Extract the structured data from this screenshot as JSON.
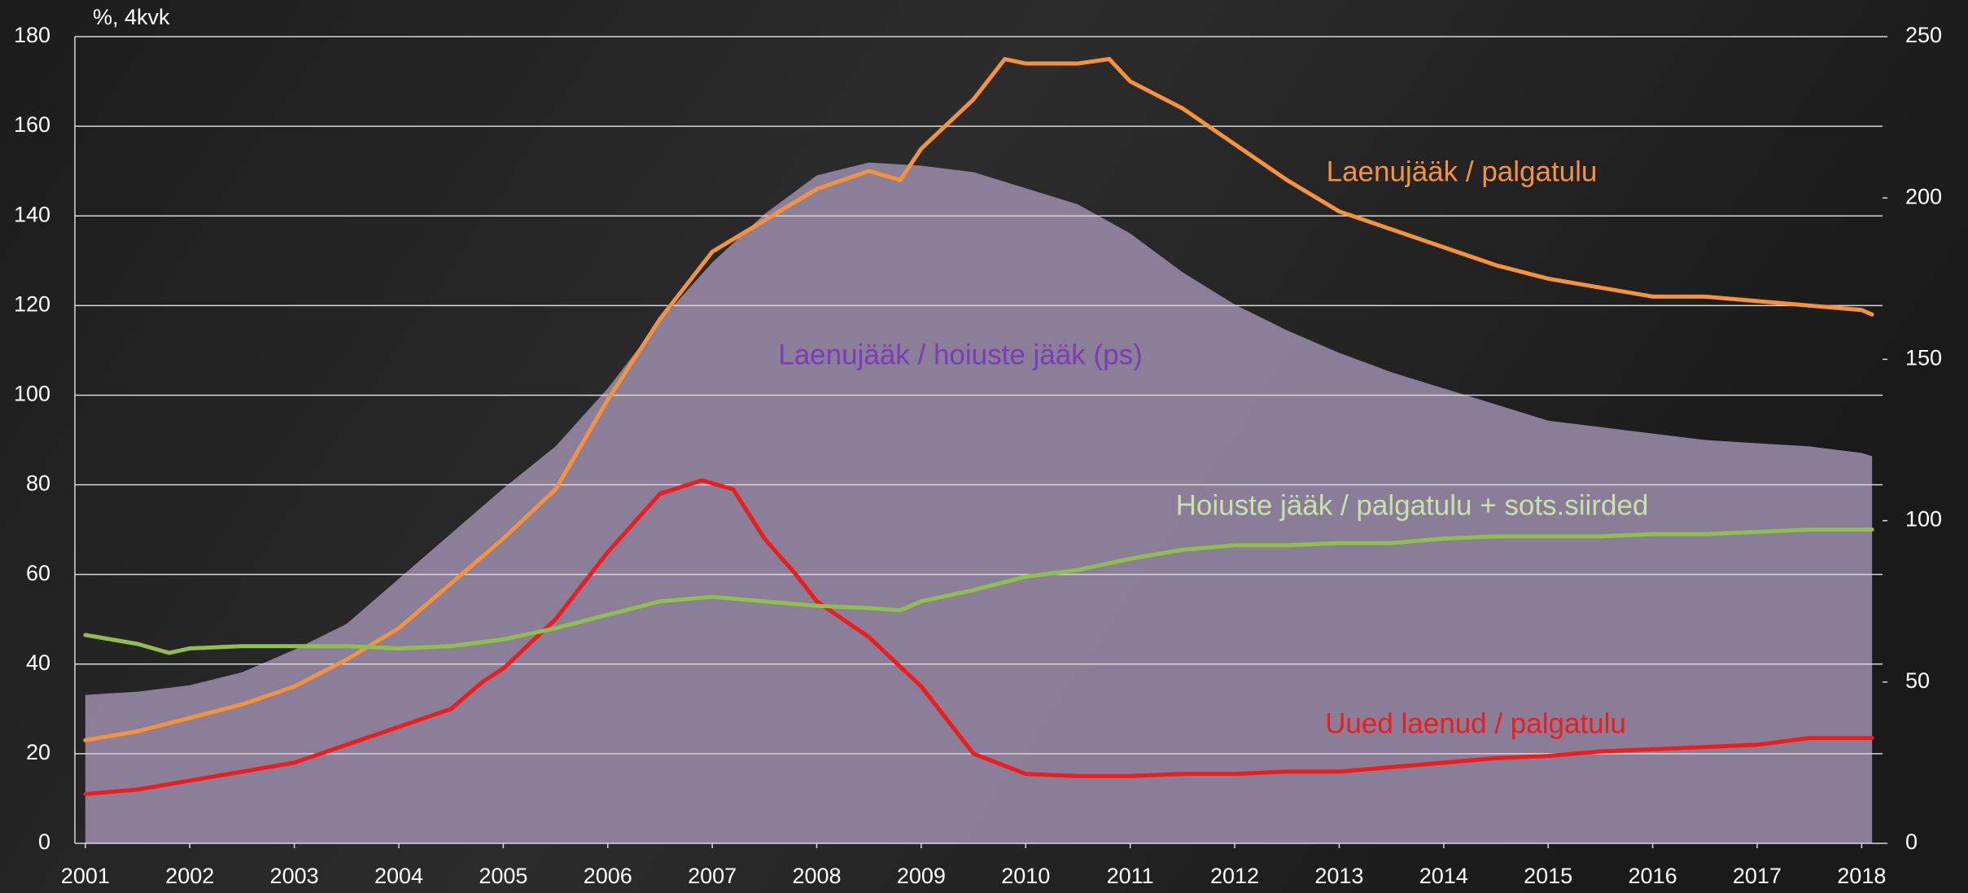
{
  "chart_data": {
    "type": "line",
    "ylabel": "%, 4kvk",
    "xlim": [
      2000.9,
      2018.2
    ],
    "xticks": [
      2001,
      2002,
      2003,
      2004,
      2005,
      2006,
      2007,
      2008,
      2009,
      2010,
      2011,
      2012,
      2013,
      2014,
      2015,
      2016,
      2017,
      2018
    ],
    "ylim": [
      0,
      180
    ],
    "yticks": [
      0,
      20,
      40,
      60,
      80,
      100,
      120,
      140,
      160,
      180
    ],
    "y2lim": [
      0,
      250
    ],
    "y2ticks": [
      0,
      50,
      100,
      150,
      200,
      250
    ],
    "grid": true,
    "series": [
      {
        "name": "Laenujääk / hoiuste jääk (ps)",
        "type": "area",
        "axis": "y2",
        "color": "#9385a3",
        "x": [
          2001,
          2001.5,
          2002,
          2002.5,
          2003,
          2003.5,
          2004,
          2004.5,
          2005,
          2005.5,
          2006,
          2006.5,
          2007,
          2007.5,
          2008,
          2008.5,
          2009,
          2009.5,
          2010,
          2010.5,
          2011,
          2011.5,
          2012,
          2012.5,
          2013,
          2013.5,
          2014,
          2014.5,
          2015,
          2015.5,
          2016,
          2016.5,
          2017,
          2017.5,
          2018,
          2018.1
        ],
        "values": [
          46,
          47,
          49,
          53,
          60,
          68,
          82,
          96,
          110,
          123,
          141,
          162,
          180,
          195,
          207,
          211,
          210,
          208,
          203,
          198,
          189,
          177,
          167,
          159,
          152,
          146,
          141,
          136,
          131,
          129,
          127,
          125,
          124,
          123,
          121,
          120
        ]
      },
      {
        "name": "Laenujääk / palgatulu",
        "type": "line",
        "color": "#f5923e",
        "x": [
          2001,
          2001.5,
          2002,
          2002.5,
          2003,
          2003.5,
          2004,
          2004.5,
          2005,
          2005.5,
          2006,
          2006.5,
          2007,
          2007.5,
          2008,
          2008.5,
          2008.8,
          2009,
          2009.5,
          2009.8,
          2010,
          2010.5,
          2010.8,
          2011,
          2011.5,
          2012,
          2012.5,
          2013,
          2013.5,
          2014,
          2014.5,
          2015,
          2015.5,
          2016,
          2016.5,
          2017,
          2017.5,
          2018,
          2018.1
        ],
        "values": [
          23,
          25,
          28,
          31,
          35,
          41,
          48,
          58,
          68,
          79,
          99,
          117,
          132,
          139,
          146,
          150,
          148,
          155,
          166,
          175,
          174,
          174,
          175,
          170,
          164,
          156,
          148,
          141,
          137,
          133,
          129,
          126,
          124,
          122,
          122,
          121,
          120,
          119,
          118
        ]
      },
      {
        "name": "Uued laenud / palgatulu",
        "type": "line",
        "color": "#ee1c1c",
        "x": [
          2001,
          2001.5,
          2002,
          2002.5,
          2003,
          2003.5,
          2004,
          2004.5,
          2004.8,
          2005,
          2005.5,
          2006,
          2006.5,
          2006.9,
          2007.2,
          2007.5,
          2007.8,
          2008,
          2008.5,
          2009,
          2009.5,
          2010,
          2010.5,
          2011,
          2011.5,
          2012,
          2012.5,
          2013,
          2013.5,
          2014,
          2014.5,
          2015,
          2015.5,
          2016,
          2016.5,
          2017,
          2017.5,
          2018,
          2018.1
        ],
        "values": [
          11,
          12,
          14,
          16,
          18,
          22,
          26,
          30,
          36,
          39,
          50,
          65,
          78,
          81,
          79,
          68,
          60,
          54,
          46,
          35,
          20,
          15.5,
          15,
          15,
          15.5,
          15.5,
          16,
          16,
          17,
          18,
          19,
          19.5,
          20.5,
          21,
          21.5,
          22,
          23.5,
          23.5,
          23.5
        ]
      },
      {
        "name": "Hoiuste jääk / palgatulu + sots.siirded",
        "type": "line",
        "color": "#8fbf4f",
        "x": [
          2001,
          2001.5,
          2001.8,
          2002,
          2002.5,
          2003,
          2003.5,
          2004,
          2004.5,
          2005,
          2005.5,
          2006,
          2006.5,
          2007,
          2007.5,
          2008,
          2008.5,
          2008.8,
          2009,
          2009.5,
          2010,
          2010.5,
          2011,
          2011.5,
          2012,
          2012.5,
          2013,
          2013.5,
          2014,
          2014.5,
          2015,
          2015.5,
          2016,
          2016.5,
          2017,
          2017.5,
          2018,
          2018.1
        ],
        "values": [
          46.5,
          44.5,
          42.5,
          43.5,
          44,
          44,
          44,
          43.5,
          44,
          45.5,
          48,
          51,
          54,
          55,
          54,
          53,
          52.5,
          52,
          54,
          56.5,
          59.5,
          61,
          63.5,
          65.5,
          66.5,
          66.5,
          67,
          67,
          68,
          68.5,
          68.5,
          68.5,
          69,
          69,
          69.5,
          70,
          70,
          70
        ]
      }
    ]
  }
}
